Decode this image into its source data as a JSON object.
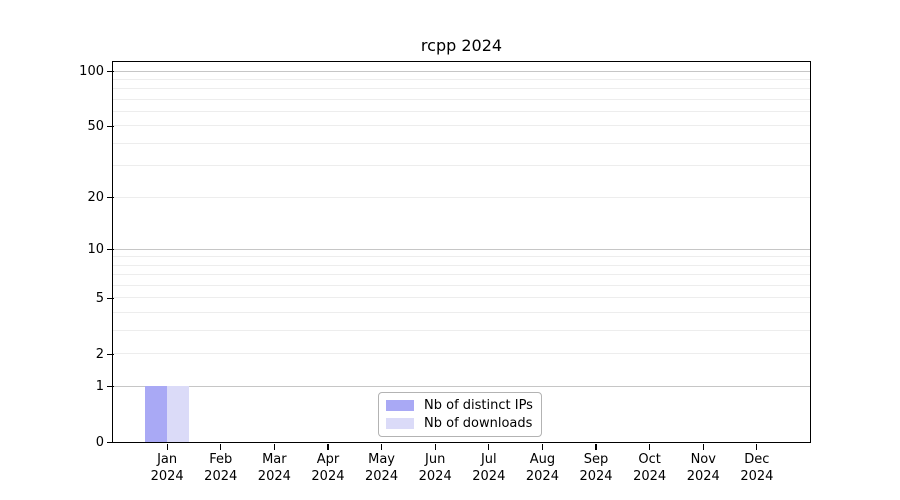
{
  "chart_data": {
    "type": "bar",
    "title": "rcpp 2024",
    "categories": [
      "Jan",
      "Feb",
      "Mar",
      "Apr",
      "May",
      "Jun",
      "Jul",
      "Aug",
      "Sep",
      "Oct",
      "Nov",
      "Dec"
    ],
    "x_tick_year": "2024",
    "series": [
      {
        "name": "Nb of distinct IPs",
        "color": "#a9a9f5",
        "values": [
          1,
          0,
          0,
          0,
          0,
          0,
          0,
          0,
          0,
          0,
          0,
          0
        ]
      },
      {
        "name": "Nb of downloads",
        "color": "#dbdbf8",
        "values": [
          1,
          0,
          0,
          0,
          0,
          0,
          0,
          0,
          0,
          0,
          0,
          0
        ]
      }
    ],
    "xlabel": "",
    "ylabel": "",
    "yscale": "log1p",
    "ylim": [
      0,
      112
    ],
    "yticks": [
      0,
      1,
      2,
      5,
      10,
      20,
      50,
      100
    ],
    "major_gridlines": [
      1,
      10,
      100
    ],
    "minor_gridlines": [
      2,
      3,
      4,
      5,
      6,
      7,
      8,
      9,
      20,
      30,
      40,
      50,
      60,
      70,
      80,
      90
    ],
    "grid_on": true,
    "grid_color_major": "#c6c6c6",
    "grid_color_minor": "#ededed",
    "legend_position": "inside-bottom-center",
    "legend_border_color": "#b3b3b3",
    "axis_color": "#000000",
    "background_color": "#ffffff"
  }
}
